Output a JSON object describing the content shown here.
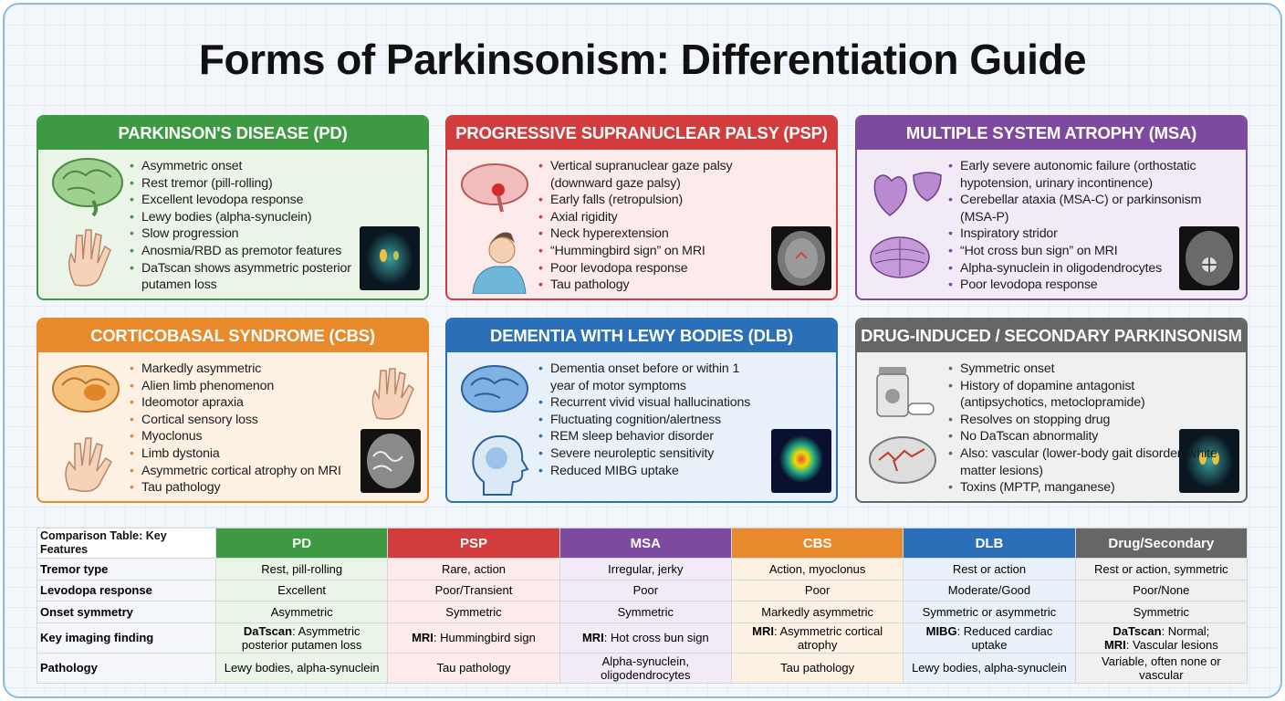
{
  "title": "Forms of Parkinsonism: Differentiation Guide",
  "cards": [
    {
      "title": "PARKINSON'S DISEASE (PD)",
      "color": "#3d9a43",
      "tint": "#eaf5e7",
      "bullets": [
        "Asymmetric onset",
        "Rest tremor (pill-rolling)",
        "Excellent levodopa response",
        "Lewy bodies (alpha-synuclein)",
        "Slow progression",
        "Anosmia/RBD as premotor features",
        "DaTscan shows asymmetric posterior putamen loss"
      ]
    },
    {
      "title": "PROGRESSIVE SUPRANUCLEAR PALSY (PSP)",
      "color": "#d23c3c",
      "tint": "#fcebea",
      "bullets": [
        "Vertical supranuclear gaze palsy (downward gaze palsy)",
        "Early falls (retropulsion)",
        "Axial rigidity",
        "Neck hyperextension",
        "“Hummingbird sign” on MRI",
        "Poor levodopa response",
        "Tau pathology"
      ]
    },
    {
      "title": "MULTIPLE SYSTEM ATROPHY (MSA)",
      "color": "#7e4a9f",
      "tint": "#f2eaf6",
      "bullets": [
        "Early severe autonomic failure (orthostatic hypotension, urinary incontinence)",
        "Cerebellar ataxia (MSA-C) or parkinsonism (MSA-P)",
        "Inspiratory stridor",
        "“Hot cross bun sign” on MRI",
        "Alpha-synuclein in oligodendrocytes",
        "Poor levodopa response"
      ]
    },
    {
      "title": "CORTICOBASAL SYNDROME (CBS)",
      "color": "#e8892b",
      "tint": "#fdf1e4",
      "bullets": [
        "Markedly asymmetric",
        "Alien limb phenomenon",
        "Ideomotor apraxia",
        "Cortical sensory loss",
        "Myoclonus",
        "Limb dystonia",
        "Asymmetric cortical atrophy on MRI",
        "Tau pathology"
      ]
    },
    {
      "title": "DEMENTIA WITH LEWY BODIES (DLB)",
      "color": "#2b6fb8",
      "tint": "#e8f1fa",
      "bullets": [
        "Dementia onset before or within 1 year of motor symptoms",
        "Recurrent vivid visual hallucinations",
        "Fluctuating cognition/alertness",
        "REM sleep behavior disorder",
        "Severe neuroleptic sensitivity",
        "Reduced MIBG uptake"
      ]
    },
    {
      "title": "DRUG-INDUCED / SECONDARY PARKINSONISM",
      "color": "#666666",
      "tint": "#f0f0f0",
      "bullets": [
        "Symmetric onset",
        "History of dopamine antagonist (antipsychotics, metoclopramide)",
        "Resolves on stopping drug",
        "No DaTscan abnormality",
        "Also: vascular (lower-body gait disorder, white matter lesions)",
        "Toxins (MPTP, manganese)"
      ]
    }
  ],
  "table": {
    "caption": "Comparison Table: Key Features",
    "columns": [
      "PD",
      "PSP",
      "MSA",
      "CBS",
      "DLB",
      "Drug/Secondary"
    ],
    "rows": [
      {
        "label": "Tremor type",
        "cells": [
          "Rest, pill-rolling",
          "Rare, action",
          "Irregular, jerky",
          "Action, myoclonus",
          "Rest or action",
          "Rest or action, symmetric"
        ]
      },
      {
        "label": "Levodopa response",
        "cells": [
          "Excellent",
          "Poor/Transient",
          "Poor",
          "Poor",
          "Moderate/Good",
          "Poor/None"
        ]
      },
      {
        "label": "Onset symmetry",
        "cells": [
          "Asymmetric",
          "Symmetric",
          "Symmetric",
          "Markedly asymmetric",
          "Symmetric or asymmetric",
          "Symmetric"
        ]
      },
      {
        "label": "Key imaging finding",
        "cells": [
          [
            {
              "bold": "DaTscan",
              "text": ": Asymmetric posterior putamen loss"
            }
          ],
          [
            {
              "bold": "MRI",
              "text": ": Hummingbird sign"
            }
          ],
          [
            {
              "bold": "MRI",
              "text": ": Hot cross bun sign"
            }
          ],
          [
            {
              "bold": "MRI",
              "text": ": Asymmetric cortical atrophy"
            }
          ],
          [
            {
              "bold": "MIBG",
              "text": ": Reduced cardiac uptake"
            }
          ],
          [
            {
              "bold": "DaTscan",
              "text": ": Normal;"
            },
            {
              "bold": "MRI",
              "text": ": Vascular lesions"
            }
          ]
        ]
      },
      {
        "label": "Pathology",
        "cells": [
          "Lewy bodies, alpha-synuclein",
          "Tau pathology",
          "Alpha-synuclein, oligodendrocytes",
          "Tau pathology",
          "Lewy bodies, alpha-synuclein",
          "Variable, often none or vascular"
        ]
      }
    ]
  }
}
